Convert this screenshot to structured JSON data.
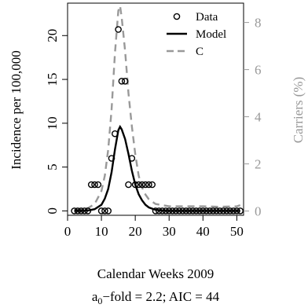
{
  "chart_data": {
    "type": "line",
    "xlabel": "Calendar Weeks 2009",
    "ylabel_left": "Incidence per 100,000",
    "ylabel_right": "Carriers (%)",
    "subtitle": {
      "prefix": "a",
      "subscript": "0",
      "suffix": "−fold = 2.2; AIC = 44"
    },
    "xlim": [
      0,
      52
    ],
    "ylim_left": [
      -0.5,
      23.7
    ],
    "ylim_right": [
      -0.18,
      8.82
    ],
    "x_ticks": [
      0,
      10,
      20,
      30,
      40,
      50
    ],
    "y_ticks_left": [
      0,
      5,
      10,
      15,
      20
    ],
    "y_ticks_right": [
      0,
      2,
      4,
      6,
      8
    ],
    "legend": {
      "position": "top-right",
      "entries": [
        {
          "label": "Data",
          "style": "circle"
        },
        {
          "label": "Model",
          "style": "solid"
        },
        {
          "label": "C",
          "style": "dashed"
        }
      ]
    },
    "colors": {
      "data": "#000000",
      "model": "#000000",
      "carriers": "#999999",
      "right_axis": "#999999"
    },
    "series": [
      {
        "name": "Data",
        "axis": "left",
        "points": [
          [
            2,
            0
          ],
          [
            3,
            0
          ],
          [
            4,
            0
          ],
          [
            5,
            0
          ],
          [
            6,
            0
          ],
          [
            7,
            3
          ],
          [
            8,
            3
          ],
          [
            9,
            3
          ],
          [
            10,
            0
          ],
          [
            11,
            0
          ],
          [
            12,
            0
          ],
          [
            13,
            6
          ],
          [
            14,
            8.8
          ],
          [
            15,
            20.7
          ],
          [
            16,
            14.8
          ],
          [
            17,
            14.8
          ],
          [
            18,
            3
          ],
          [
            19,
            6
          ],
          [
            20,
            3
          ],
          [
            21,
            3
          ],
          [
            22,
            3
          ],
          [
            23,
            3
          ],
          [
            24,
            3
          ],
          [
            25,
            3
          ],
          [
            26,
            0
          ],
          [
            27,
            0
          ],
          [
            28,
            0
          ],
          [
            29,
            0
          ],
          [
            30,
            0
          ],
          [
            31,
            0
          ],
          [
            32,
            0
          ],
          [
            33,
            0
          ],
          [
            34,
            0
          ],
          [
            35,
            0
          ],
          [
            36,
            0
          ],
          [
            37,
            0
          ],
          [
            38,
            0
          ],
          [
            39,
            0
          ],
          [
            40,
            0
          ],
          [
            41,
            0
          ],
          [
            42,
            0
          ],
          [
            43,
            0
          ],
          [
            44,
            0
          ],
          [
            45,
            0
          ],
          [
            46,
            0
          ],
          [
            47,
            0
          ],
          [
            48,
            0
          ],
          [
            49,
            0
          ],
          [
            50,
            0
          ],
          [
            51,
            0
          ]
        ]
      },
      {
        "name": "Model",
        "axis": "left",
        "points": [
          [
            2,
            0
          ],
          [
            4,
            0
          ],
          [
            6,
            0.05
          ],
          [
            8,
            0.2
          ],
          [
            10,
            0.7
          ],
          [
            11,
            1.4
          ],
          [
            12,
            2.5
          ],
          [
            13,
            4.4
          ],
          [
            14,
            7.0
          ],
          [
            15,
            9.2
          ],
          [
            15.5,
            9.6
          ],
          [
            16,
            9.3
          ],
          [
            17,
            8.2
          ],
          [
            18,
            6.5
          ],
          [
            19,
            4.6
          ],
          [
            20,
            3.0
          ],
          [
            21,
            1.9
          ],
          [
            22,
            1.2
          ],
          [
            23,
            0.7
          ],
          [
            24,
            0.4
          ],
          [
            26,
            0.12
          ],
          [
            28,
            0.03
          ],
          [
            30,
            0
          ],
          [
            40,
            0
          ],
          [
            51,
            0
          ]
        ]
      },
      {
        "name": "C",
        "axis": "right",
        "points": [
          [
            2,
            0.05
          ],
          [
            4,
            0.06
          ],
          [
            6,
            0.12
          ],
          [
            8,
            0.3
          ],
          [
            10,
            0.85
          ],
          [
            11,
            1.5
          ],
          [
            12,
            2.6
          ],
          [
            13,
            4.3
          ],
          [
            14,
            6.7
          ],
          [
            15,
            8.5
          ],
          [
            15.5,
            8.7
          ],
          [
            16,
            8.2
          ],
          [
            17,
            6.8
          ],
          [
            18,
            5.0
          ],
          [
            19,
            3.6
          ],
          [
            20,
            2.4
          ],
          [
            21,
            1.5
          ],
          [
            22,
            1.0
          ],
          [
            23,
            0.7
          ],
          [
            24,
            0.5
          ],
          [
            26,
            0.3
          ],
          [
            28,
            0.25
          ],
          [
            30,
            0.2
          ],
          [
            35,
            0.2
          ],
          [
            40,
            0.2
          ],
          [
            45,
            0.18
          ],
          [
            50,
            0.2
          ],
          [
            51,
            0.25
          ]
        ]
      }
    ]
  }
}
